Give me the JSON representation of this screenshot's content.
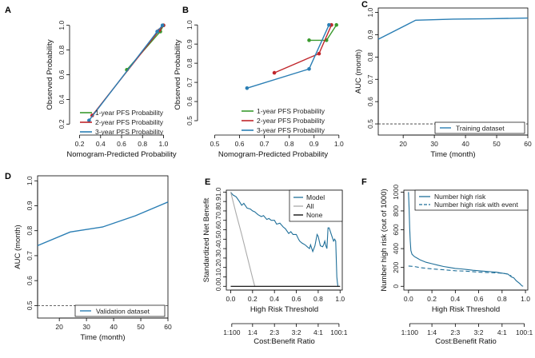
{
  "colors": {
    "green": "#3a9a2e",
    "red": "#c0262b",
    "blue": "#2a7eb4",
    "teal": "#1f6f99",
    "gray": "#aaaaaa",
    "black": "#000000"
  },
  "chart_data": [
    {
      "panel": "A",
      "type": "line",
      "xlabel": "Nomogram-Predicted Probability",
      "ylabel": "Observed Probability",
      "xlim": [
        0.15,
        1.05
      ],
      "ylim": [
        0.15,
        1.05
      ],
      "xticks": [
        0.2,
        0.4,
        0.6,
        0.8,
        1.0
      ],
      "xtick_labels": [
        "0.2",
        "0.4",
        "0.6",
        "0.8",
        "1.0"
      ],
      "yticks": [
        0.2,
        0.4,
        0.6,
        0.8,
        1.0
      ],
      "ytick_labels": [
        "0.2",
        "0.4",
        "0.6",
        "0.8",
        "1.0"
      ],
      "series": [
        {
          "name": "1-year PFS Probability",
          "color": "green",
          "x": [
            0.65,
            0.97,
            1.0
          ],
          "y": [
            0.64,
            0.95,
            1.0
          ]
        },
        {
          "name": "2-year PFS Probability",
          "color": "red",
          "x": [
            0.32,
            0.96,
            1.0
          ],
          "y": [
            0.27,
            0.96,
            1.0
          ]
        },
        {
          "name": "3-year PFS Probability",
          "color": "blue",
          "x": [
            0.29,
            0.94,
            0.99
          ],
          "y": [
            0.23,
            0.95,
            1.0
          ]
        }
      ],
      "legend": [
        "1-year PFS Probability",
        "2-year PFS Probability",
        "3-year PFS Probability"
      ],
      "legend_position": "bottom-right"
    },
    {
      "panel": "B",
      "type": "line",
      "xlabel": "Nomogram-Predicted Probability",
      "ylabel": "Observed Probability",
      "xlim": [
        0.45,
        1.02
      ],
      "ylim": [
        0.45,
        1.03
      ],
      "xticks": [
        0.5,
        0.6,
        0.7,
        0.8,
        0.9,
        1.0
      ],
      "xtick_labels": [
        "0.5",
        "0.6",
        "0.7",
        "0.8",
        "0.9",
        "1.0"
      ],
      "yticks": [
        0.5,
        0.6,
        0.7,
        0.8,
        0.9,
        1.0
      ],
      "ytick_labels": [
        "0.5",
        "0.6",
        "0.7",
        "0.8",
        "0.9",
        "1.0"
      ],
      "series": [
        {
          "name": "1-year PFS Probability",
          "color": "green",
          "x": [
            0.88,
            0.95,
            0.99
          ],
          "y": [
            0.92,
            0.92,
            1.0
          ]
        },
        {
          "name": "2-year PFS Probability",
          "color": "red",
          "x": [
            0.74,
            0.92,
            0.97
          ],
          "y": [
            0.75,
            0.85,
            1.0
          ]
        },
        {
          "name": "3-year PFS Probability",
          "color": "blue",
          "x": [
            0.63,
            0.88,
            0.96
          ],
          "y": [
            0.67,
            0.77,
            1.0
          ]
        }
      ],
      "legend": [
        "1-year PFS Probability",
        "2-year PFS Probability",
        "3-year PFS Probability"
      ],
      "legend_position": "bottom-right"
    },
    {
      "panel": "C",
      "type": "line",
      "xlabel": "Time (month)",
      "ylabel": "AUC (month)",
      "xlim": [
        12,
        60
      ],
      "ylim": [
        0.45,
        1.02
      ],
      "xticks": [
        20,
        30,
        40,
        50,
        60
      ],
      "xtick_labels": [
        "20",
        "30",
        "40",
        "50",
        "60"
      ],
      "yticks": [
        0.5,
        0.6,
        0.7,
        0.8,
        0.9,
        1.0
      ],
      "ytick_labels": [
        "0.5",
        "0.6",
        "0.7",
        "0.8",
        "0.9",
        "1.0"
      ],
      "series": [
        {
          "name": "Training dataset",
          "color": "blue",
          "x": [
            12,
            24,
            36,
            48,
            60
          ],
          "y": [
            0.88,
            0.965,
            0.97,
            0.972,
            0.975
          ]
        }
      ],
      "reference_line": 0.5,
      "legend": [
        "Training dataset"
      ],
      "legend_position": "bottom-right"
    },
    {
      "panel": "D",
      "type": "line",
      "xlabel": "Time (month)",
      "ylabel": "AUC (month)",
      "xlim": [
        12,
        60
      ],
      "ylim": [
        0.45,
        1.02
      ],
      "xticks": [
        20,
        30,
        40,
        50,
        60
      ],
      "xtick_labels": [
        "20",
        "30",
        "40",
        "50",
        "60"
      ],
      "yticks": [
        0.5,
        0.6,
        0.7,
        0.8,
        0.9,
        1.0
      ],
      "ytick_labels": [
        "0.5",
        "0.6",
        "0.7",
        "0.8",
        "0.9",
        "1.0"
      ],
      "series": [
        {
          "name": "Validation dataset",
          "color": "blue",
          "x": [
            12,
            24,
            36,
            48,
            60
          ],
          "y": [
            0.74,
            0.795,
            0.815,
            0.86,
            0.915
          ]
        }
      ],
      "reference_line": 0.5,
      "legend": [
        "Validation dataset"
      ],
      "legend_position": "bottom-right"
    },
    {
      "panel": "E",
      "type": "line",
      "xlabel": "High Risk Threshold",
      "ylabel": "Standardized Net Benefit",
      "x2label": "Cost:Benefit Ratio",
      "xlim": [
        -0.04,
        1.02
      ],
      "ylim": [
        -0.04,
        1.02
      ],
      "xticks": [
        0,
        0.2,
        0.4,
        0.6,
        0.8,
        1.0
      ],
      "xtick_labels": [
        "0.0",
        "0.2",
        "0.4",
        "0.6",
        "0.8",
        "1.0"
      ],
      "yticks": [
        0,
        0.1,
        0.2,
        0.3,
        0.4,
        0.5,
        0.6,
        0.7,
        0.8,
        0.9,
        1.0
      ],
      "ytick_labels": [
        "0.0",
        "0.1",
        "0.2",
        "0.3",
        "0.4",
        "0.5",
        "0.6",
        "0.7",
        "0.8",
        "0.9",
        "1.0"
      ],
      "x2ticks": [
        0.01,
        0.2,
        0.4,
        0.6,
        0.8,
        0.99
      ],
      "x2tick_labels": [
        "1:100",
        "1:4",
        "2:3",
        "3:2",
        "4:1",
        "100:1"
      ],
      "series": [
        {
          "name": "Model",
          "color": "teal",
          "x": [
            0,
            0.02,
            0.05,
            0.08,
            0.1,
            0.12,
            0.15,
            0.18,
            0.2,
            0.22,
            0.25,
            0.28,
            0.3,
            0.33,
            0.35,
            0.37,
            0.4,
            0.42,
            0.45,
            0.48,
            0.5,
            0.53,
            0.55,
            0.57,
            0.6,
            0.62,
            0.63,
            0.65,
            0.68,
            0.7,
            0.72,
            0.73,
            0.75,
            0.77,
            0.79,
            0.8,
            0.82,
            0.84,
            0.85,
            0.86,
            0.87,
            0.88,
            0.89,
            0.9,
            0.92,
            0.94,
            0.95,
            0.96,
            0.97,
            0.975,
            0.98
          ],
          "y": [
            1.0,
            0.97,
            0.95,
            0.9,
            0.86,
            0.88,
            0.83,
            0.82,
            0.8,
            0.79,
            0.76,
            0.74,
            0.75,
            0.71,
            0.72,
            0.7,
            0.7,
            0.66,
            0.67,
            0.63,
            0.61,
            0.56,
            0.58,
            0.55,
            0.55,
            0.5,
            0.48,
            0.46,
            0.44,
            0.42,
            0.4,
            0.44,
            0.37,
            0.43,
            0.55,
            0.53,
            0.43,
            0.42,
            0.44,
            0.48,
            0.43,
            0.4,
            0.62,
            0.62,
            0.55,
            0.48,
            0.5,
            0.48,
            0.1,
            0.05,
            0.0
          ]
        },
        {
          "name": "All",
          "color": "gray",
          "x": [
            0,
            0.05,
            0.1,
            0.15,
            0.2,
            0.22
          ],
          "y": [
            1.0,
            0.77,
            0.55,
            0.32,
            0.09,
            0.0
          ]
        },
        {
          "name": "None",
          "color": "black",
          "x": [
            0,
            1.0
          ],
          "y": [
            0,
            0
          ]
        }
      ],
      "legend": [
        "Model",
        "All",
        "None"
      ],
      "legend_position": "top-right"
    },
    {
      "panel": "F",
      "type": "line",
      "xlabel": "High Risk Threshold",
      "ylabel": "Number high risk (out of 1000)",
      "x2label": "Cost:Benefit Ratio",
      "xlim": [
        -0.04,
        1.02
      ],
      "ylim": [
        -40,
        1020
      ],
      "xticks": [
        0,
        0.2,
        0.4,
        0.6,
        0.8,
        1.0
      ],
      "xtick_labels": [
        "0.0",
        "0.2",
        "0.4",
        "0.6",
        "0.8",
        "1.0"
      ],
      "yticks": [
        0,
        200,
        400,
        600,
        800,
        1000
      ],
      "ytick_labels": [
        "0",
        "200",
        "400",
        "600",
        "800",
        "1000"
      ],
      "x2ticks": [
        0.01,
        0.2,
        0.4,
        0.6,
        0.8,
        0.99
      ],
      "x2tick_labels": [
        "1:100",
        "1:4",
        "2:3",
        "3:2",
        "4:1",
        "100:1"
      ],
      "series": [
        {
          "name": "Number high risk",
          "color": "teal",
          "dash": false,
          "x": [
            0,
            0.005,
            0.01,
            0.015,
            0.02,
            0.03,
            0.05,
            0.08,
            0.1,
            0.15,
            0.2,
            0.25,
            0.3,
            0.35,
            0.4,
            0.45,
            0.5,
            0.55,
            0.6,
            0.65,
            0.7,
            0.75,
            0.8,
            0.85,
            0.88,
            0.9,
            0.92,
            0.95,
            0.97,
            0.98
          ],
          "y": [
            1000,
            820,
            620,
            480,
            380,
            340,
            315,
            295,
            280,
            255,
            240,
            225,
            210,
            200,
            190,
            185,
            178,
            170,
            165,
            160,
            155,
            150,
            140,
            130,
            100,
            90,
            60,
            30,
            5,
            0
          ]
        },
        {
          "name": "Number high risk with event",
          "color": "teal",
          "dash": true,
          "x": [
            0,
            0.05,
            0.1,
            0.2,
            0.3,
            0.4,
            0.5,
            0.6,
            0.7,
            0.8,
            0.85,
            0.88
          ],
          "y": [
            215,
            210,
            198,
            185,
            175,
            165,
            160,
            150,
            145,
            140,
            130,
            110
          ]
        }
      ],
      "legend": [
        "Number high risk",
        "Number high risk with event"
      ],
      "legend_position": "top-right"
    }
  ]
}
